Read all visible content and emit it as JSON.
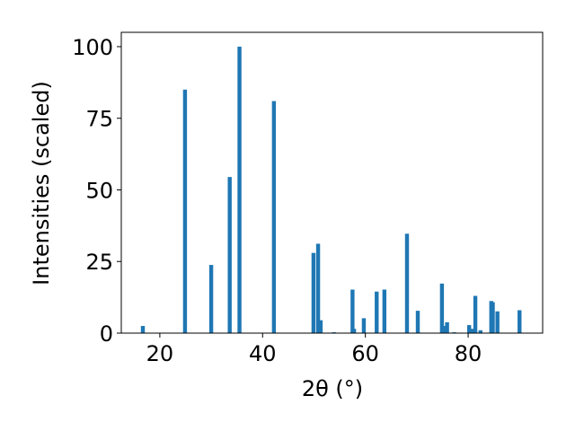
{
  "chart_data": {
    "type": "bar",
    "xlabel": "2θ (°)",
    "ylabel": "Intensities (scaled)",
    "xlim": [
      12.5,
      94.5
    ],
    "ylim": [
      0,
      105
    ],
    "xticks": [
      20,
      40,
      60,
      80
    ],
    "yticks": [
      0,
      25,
      50,
      75,
      100
    ],
    "grid": false,
    "bar_color": "#1f77b4",
    "x": [
      16.7,
      24.9,
      30.0,
      33.6,
      35.5,
      42.2,
      49.9,
      50.8,
      51.3,
      53.9,
      57.5,
      57.8,
      59.7,
      62.2,
      63.7,
      68.1,
      70.2,
      74.9,
      75.2,
      75.9,
      77.3,
      80.2,
      80.7,
      81.4,
      82.4,
      84.5,
      84.8,
      85.7,
      90.0
    ],
    "values": [
      2.5,
      85.0,
      23.8,
      54.5,
      100.0,
      81.0,
      28.0,
      31.2,
      4.5,
      0.3,
      15.2,
      1.5,
      5.2,
      14.5,
      15.2,
      34.7,
      7.8,
      17.3,
      2.5,
      3.8,
      0.3,
      2.8,
      1.5,
      13.0,
      1.0,
      11.2,
      10.8,
      7.6,
      8.0
    ]
  }
}
